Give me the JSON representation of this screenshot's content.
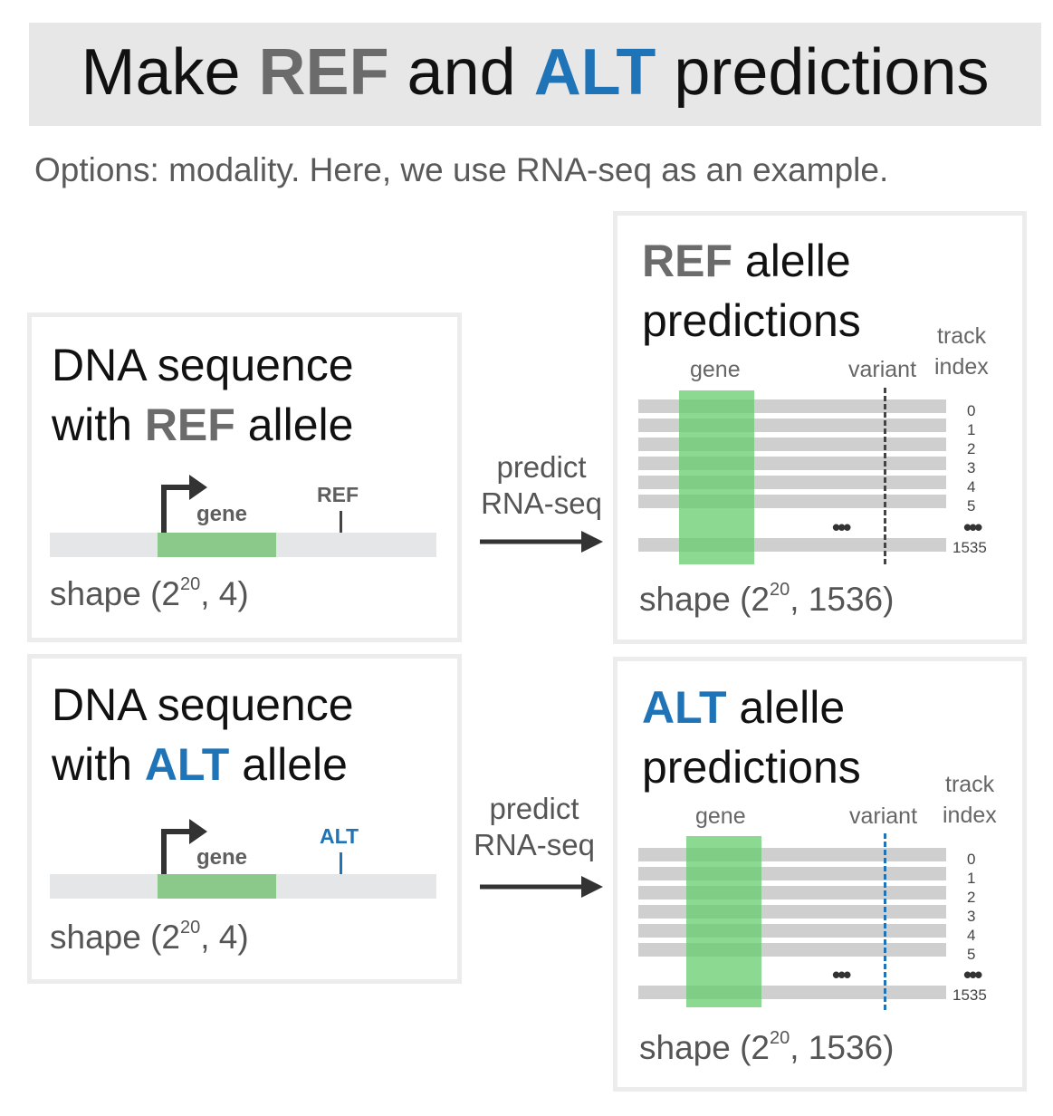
{
  "title": {
    "prefix": "Make ",
    "ref": "REF",
    "middle": " and ",
    "alt": "ALT",
    "suffix": " predictions"
  },
  "subtitle": "Options: modality. Here, we use RNA-seq as an example.",
  "colors": {
    "ref": "#6b6b6b",
    "alt": "#1f73b7",
    "gene": "#8bc98a",
    "track": "#cfcfcf"
  },
  "ref_input": {
    "line1": "DNA sequence",
    "line2_prefix": "with ",
    "allele": "REF",
    "line2_suffix": " allele",
    "gene_label": "gene",
    "allele_label": "REF",
    "shape_prefix": "shape (2",
    "shape_exp": "20",
    "shape_suffix": ", 4)"
  },
  "alt_input": {
    "line1": "DNA sequence",
    "line2_prefix": "with ",
    "allele": "ALT",
    "line2_suffix": " allele",
    "gene_label": "gene",
    "allele_label": "ALT",
    "shape_prefix": "shape (2",
    "shape_exp": "20",
    "shape_suffix": ", 4)"
  },
  "arrow_ref": {
    "line1": "predict",
    "line2": "RNA-seq"
  },
  "arrow_alt": {
    "line1": "predict",
    "line2": "RNA-seq"
  },
  "ref_output": {
    "allele": "REF",
    "line1_suffix": " alelle",
    "line2": "predictions",
    "gene_label": "gene",
    "variant_label": "variant",
    "track_label_1": "track",
    "track_label_2": "index",
    "indices": [
      "0",
      "1",
      "2",
      "3",
      "4",
      "5"
    ],
    "dots": "•••",
    "last_index": "1535",
    "shape_prefix": "shape (2",
    "shape_exp": "20",
    "shape_suffix": ", 1536)"
  },
  "alt_output": {
    "allele": "ALT",
    "line1_suffix": " alelle",
    "line2": "predictions",
    "gene_label": "gene",
    "variant_label": "variant",
    "track_label_1": "track",
    "track_label_2": "index",
    "indices": [
      "0",
      "1",
      "2",
      "3",
      "4",
      "5"
    ],
    "dots": "•••",
    "last_index": "1535",
    "shape_prefix": "shape (2",
    "shape_exp": "20",
    "shape_suffix": ", 1536)"
  }
}
